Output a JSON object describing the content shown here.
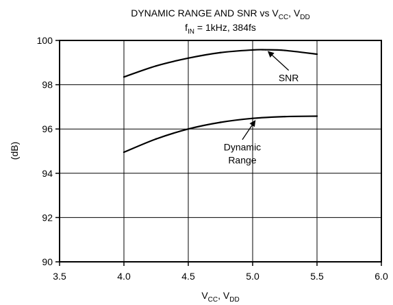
{
  "chart_data": {
    "type": "line",
    "title": {
      "parts": [
        {
          "text": "DYNAMIC RANGE AND SNR vs V"
        },
        {
          "text": "CC",
          "sub": true
        },
        {
          "text": ", V"
        },
        {
          "text": "DD",
          "sub": true
        }
      ]
    },
    "subtitle": {
      "parts": [
        {
          "text": "f"
        },
        {
          "text": "IN",
          "sub": true
        },
        {
          "text": " = 1kHz, 384fs"
        }
      ]
    },
    "xlabel": {
      "parts": [
        {
          "text": "V"
        },
        {
          "text": "CC",
          "sub": true
        },
        {
          "text": ", V"
        },
        {
          "text": "DD",
          "sub": true
        }
      ]
    },
    "ylabel": "(dB)",
    "xlim": [
      3.5,
      6.0
    ],
    "ylim": [
      90,
      100
    ],
    "xticks": [
      3.5,
      4.0,
      4.5,
      5.0,
      5.5,
      6.0
    ],
    "xtick_labels": [
      "3.5",
      "4.0",
      "4.5",
      "5.0",
      "5.5",
      "6.0"
    ],
    "yticks": [
      90,
      92,
      94,
      96,
      98,
      100
    ],
    "ytick_labels": [
      "90",
      "92",
      "94",
      "96",
      "98",
      "100"
    ],
    "grid": true,
    "series": [
      {
        "x": [
          4.0,
          4.25,
          4.5,
          4.75,
          5.0,
          5.1,
          5.25,
          5.5
        ],
        "y": [
          98.35,
          98.85,
          99.2,
          99.45,
          99.57,
          99.58,
          99.55,
          99.38
        ]
      },
      {
        "x": [
          4.0,
          4.25,
          4.5,
          4.75,
          5.0,
          5.25,
          5.5
        ],
        "y": [
          94.95,
          95.55,
          96.0,
          96.3,
          96.48,
          96.56,
          96.58
        ]
      }
    ],
    "annotations": [
      {
        "lines": [
          "SNR"
        ],
        "series": 0,
        "arrow_from": [
          5.28,
          98.65
        ],
        "arrow_to": [
          5.12,
          99.5
        ]
      },
      {
        "lines": [
          "Dynamic",
          "Range"
        ],
        "series": 1,
        "arrow_from": [
          4.92,
          95.52
        ],
        "arrow_to": [
          5.02,
          96.38
        ]
      }
    ]
  }
}
